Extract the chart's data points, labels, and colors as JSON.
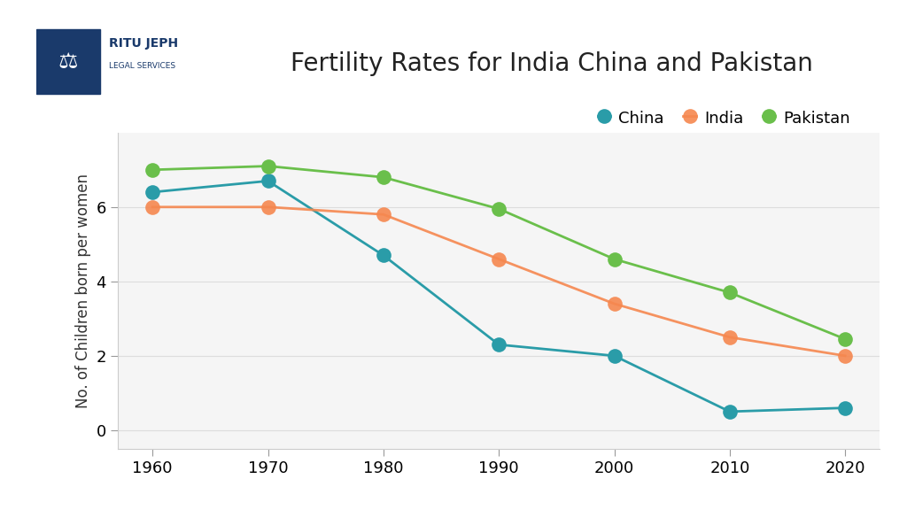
{
  "title": "Fertility Rates for India China and Pakistan",
  "ylabel": "No. of Children born per women",
  "years": [
    1960,
    1970,
    1980,
    1990,
    2000,
    2010,
    2020
  ],
  "china": [
    6.4,
    6.7,
    4.7,
    2.3,
    2.0,
    0.5,
    0.6
  ],
  "india": [
    6.0,
    6.0,
    5.8,
    4.6,
    3.4,
    2.5,
    2.0
  ],
  "pakistan": [
    7.0,
    7.1,
    6.8,
    5.95,
    4.6,
    3.7,
    2.45
  ],
  "china_color": "#2a9ca8",
  "india_color": "#f5874f",
  "pakistan_color": "#6abf4b",
  "background_color": "#ffffff",
  "plot_bg_color": "#f5f5f5",
  "ylim": [
    -0.5,
    8.0
  ],
  "yticks": [
    0.0,
    2.0,
    4.0,
    6.0
  ],
  "logo_color": "#1a3a6b",
  "title_fontsize": 20,
  "label_fontsize": 12,
  "tick_fontsize": 13,
  "legend_fontsize": 13,
  "marker_size": 12,
  "line_width": 2.0
}
